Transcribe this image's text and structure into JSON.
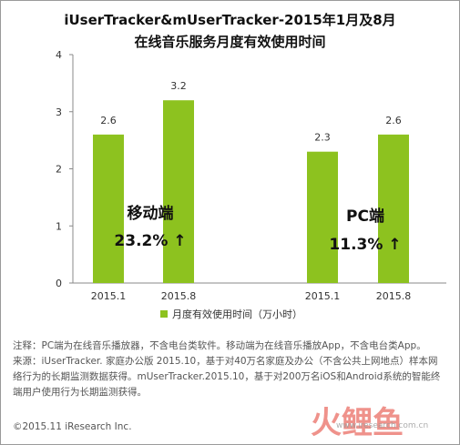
{
  "title_line1": "iUserTracker&mUserTracker-2015年1月及8月",
  "title_line2": "在线音乐服务月度有效使用时间",
  "chart_data": {
    "type": "bar",
    "title": "iUserTracker&mUserTracker-2015年1月及8月 在线音乐服务月度有效使用时间",
    "groups": [
      {
        "name": "移动端",
        "growth": "23.2% ↑",
        "categories": [
          "2015.1",
          "2015.8"
        ],
        "values": [
          2.6,
          3.2
        ]
      },
      {
        "name": "PC端",
        "growth": "11.3% ↑",
        "categories": [
          "2015.1",
          "2015.8"
        ],
        "values": [
          2.3,
          2.6
        ]
      }
    ],
    "series": [
      {
        "name": "月度有效使用时间（万小时）",
        "color": "#8dc21f"
      }
    ],
    "ylim": [
      0,
      4
    ],
    "yticks": [
      0,
      1,
      2,
      3,
      4
    ],
    "grid": false,
    "legend_position": "bottom"
  },
  "notes": {
    "line1": "注释：PC端为在线音乐播放器，不含电台类软件。移动端为在线音乐播放App，不含电台类App。",
    "line2": "来源：iUserTracker. 家庭办公版 2015.10，基于对40万名家庭及办公（不含公共上网地点）样本网",
    "line3": "络行为的长期监测数据获得。mUserTracker.2015.10，基于对200万名iOS和Android系统的智能终",
    "line4": "端用户使用行为长期监测获得。"
  },
  "copyright": "©2015.11 iResearch Inc.",
  "watermark": {
    "text": "火鲤鱼",
    "url": "www.iresearch.com.cn"
  }
}
